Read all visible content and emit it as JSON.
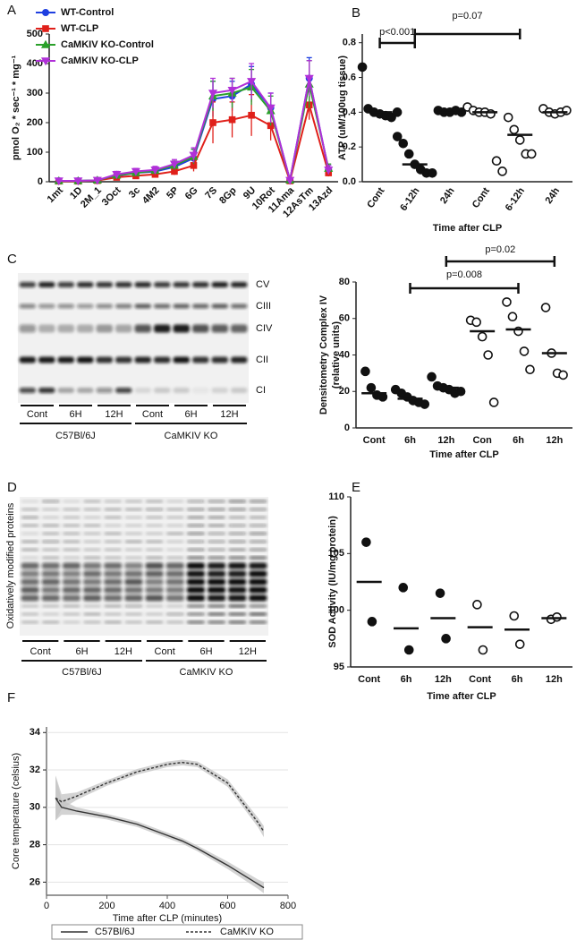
{
  "chart_data": [
    {
      "type": "line",
      "panel": "A",
      "ylabel": "pmol O₂ * sec⁻¹ * mg⁻¹",
      "categories": [
        "1mt",
        "1D",
        "2M_1",
        "3Oct",
        "3c",
        "4M2",
        "5P",
        "6G",
        "7S",
        "8Gp",
        "9U",
        "10Rot",
        "11Ama",
        "12AsTm",
        "13Azd"
      ],
      "ylim": [
        0,
        500
      ],
      "yticks": [
        0,
        100,
        200,
        300,
        400,
        500
      ],
      "legend": "upper left",
      "series": [
        {
          "name": "WT-Control",
          "color": "#1f3fe0",
          "marker": "circle",
          "values": [
            3,
            3,
            5,
            20,
            30,
            35,
            50,
            80,
            280,
            290,
            330,
            250,
            5,
            350,
            40
          ],
          "errors": [
            2,
            2,
            3,
            10,
            10,
            12,
            15,
            30,
            60,
            50,
            60,
            50,
            3,
            70,
            15
          ]
        },
        {
          "name": "WT-CLP",
          "color": "#e0201a",
          "marker": "square",
          "values": [
            2,
            2,
            4,
            15,
            20,
            25,
            35,
            55,
            200,
            210,
            225,
            190,
            3,
            260,
            30
          ],
          "errors": [
            2,
            2,
            3,
            8,
            8,
            10,
            12,
            20,
            70,
            60,
            70,
            50,
            3,
            50,
            12
          ]
        },
        {
          "name": "CaMKIV KO-Control",
          "color": "#2aa02a",
          "marker": "triangle",
          "values": [
            3,
            3,
            5,
            22,
            30,
            38,
            55,
            85,
            290,
            300,
            320,
            240,
            5,
            330,
            45
          ],
          "errors": [
            2,
            2,
            3,
            10,
            10,
            12,
            15,
            25,
            50,
            50,
            60,
            50,
            3,
            80,
            15
          ]
        },
        {
          "name": "CaMKIV KO-CLP",
          "color": "#b030d8",
          "marker": "triangle-down",
          "values": [
            3,
            3,
            5,
            25,
            35,
            40,
            60,
            90,
            300,
            310,
            340,
            250,
            5,
            350,
            40
          ],
          "errors": [
            2,
            2,
            3,
            10,
            10,
            12,
            15,
            25,
            50,
            40,
            60,
            50,
            3,
            60,
            15
          ]
        }
      ]
    },
    {
      "type": "dotplot",
      "panel": "B",
      "ylabel": "ATP (uM/100ug tissue)",
      "xlabel": "Time after CLP",
      "categories": [
        "Cont",
        "6-12h",
        "24h",
        "Cont",
        "6-12h",
        "24h"
      ],
      "ylim": [
        0,
        0.85
      ],
      "yticks": [
        {
          "value": 0,
          "label": "0.0"
        },
        0.2,
        0.4,
        0.6,
        0.8
      ],
      "filled": [
        true,
        true,
        true,
        false,
        false,
        false
      ],
      "points": [
        [
          0.66,
          0.42,
          0.4,
          0.39,
          0.38,
          0.37,
          0.4
        ],
        [
          0.26,
          0.22,
          0.16,
          0.1,
          0.07,
          0.05,
          0.05
        ],
        [
          0.41,
          0.4,
          0.4,
          0.41,
          0.4
        ],
        [
          0.43,
          0.41,
          0.4,
          0.4,
          0.39,
          0.12,
          0.06
        ],
        [
          0.37,
          0.3,
          0.24,
          0.16,
          0.16
        ],
        [
          0.42,
          0.4,
          0.39,
          0.4,
          0.41
        ]
      ],
      "medians": [
        0.4,
        0.1,
        0.4,
        0.4,
        0.27,
        0.4
      ],
      "annotations": [
        "p<0.001",
        "p=0.07"
      ]
    },
    {
      "type": "dotplot",
      "ylabel": [
        "Densitometry Complex IV",
        "(relative units)"
      ],
      "xlabel": "Time after CLP",
      "categories": [
        "Cont",
        "6h",
        "12h",
        "Con",
        "6h",
        "12h"
      ],
      "ylim": [
        0,
        80
      ],
      "yticks": [
        0,
        20,
        40,
        60,
        80
      ],
      "filled": [
        true,
        true,
        true,
        false,
        false,
        false
      ],
      "points": [
        [
          31,
          22,
          18,
          17
        ],
        [
          21,
          19,
          17,
          15,
          14,
          13
        ],
        [
          28,
          23,
          22,
          21,
          19,
          20
        ],
        [
          59,
          58,
          50,
          40,
          14
        ],
        [
          69,
          61,
          53,
          42,
          32
        ],
        [
          66,
          41,
          30,
          29
        ]
      ],
      "medians": [
        19,
        16,
        22,
        53,
        54,
        41
      ],
      "annotations": [
        "p=0.008",
        "p=0.02"
      ]
    },
    {
      "type": "dotplot",
      "panel": "E",
      "ylabel": "SOD Activity (IU/mg protein)",
      "xlabel": "Time after CLP",
      "categories": [
        "Cont",
        "6h",
        "12h",
        "Cont",
        "6h",
        "12h"
      ],
      "ylim": [
        95,
        110
      ],
      "yticks": [
        95,
        100,
        105,
        110
      ],
      "filled": [
        true,
        true,
        true,
        false,
        false,
        false
      ],
      "points": [
        [
          106,
          99
        ],
        [
          102,
          96.5
        ],
        [
          101.5,
          97.5
        ],
        [
          100.5,
          96.5
        ],
        [
          99.5,
          97
        ],
        [
          99.2,
          99.4
        ]
      ],
      "medians": [
        102.5,
        98.4,
        99.3,
        98.5,
        98.3,
        99.3
      ]
    },
    {
      "type": "line-ci",
      "panel": "F",
      "ylabel": "Core temperature (celsius)",
      "xlabel": "Time after CLP (minutes)",
      "x": [
        30,
        50,
        100,
        200,
        300,
        400,
        450,
        500,
        600,
        700,
        720
      ],
      "xlim": [
        0,
        800
      ],
      "xticks": [
        0,
        200,
        400,
        600,
        800
      ],
      "ylim": [
        25.3,
        34.3
      ],
      "yticks": [
        26,
        28,
        30,
        32,
        34
      ],
      "grid": true,
      "legend": "bottom",
      "series": [
        {
          "name": "C57Bl/6J",
          "line_style": "solid",
          "values": [
            30.5,
            30.0,
            29.8,
            29.5,
            29.1,
            28.5,
            28.2,
            27.8,
            26.9,
            25.9,
            25.7
          ],
          "ci": [
            1.2,
            0.4,
            0.2,
            0.15,
            0.15,
            0.15,
            0.15,
            0.15,
            0.2,
            0.25,
            0.3
          ]
        },
        {
          "name": "CaMKIV KO",
          "line_style": "dashed",
          "values": [
            30.5,
            30.3,
            30.6,
            31.3,
            31.9,
            32.3,
            32.4,
            32.3,
            31.3,
            29.2,
            28.7
          ],
          "ci": [
            1.2,
            0.4,
            0.2,
            0.15,
            0.15,
            0.15,
            0.15,
            0.15,
            0.2,
            0.25,
            0.3
          ]
        }
      ]
    }
  ],
  "blots": [
    {
      "panel": "C",
      "band_labels": [
        "CV",
        "CIII",
        "CIV",
        "CII",
        "CI"
      ],
      "lane_labels": [
        "Cont",
        "6H",
        "12H",
        "Cont",
        "6H",
        "12H"
      ],
      "groups": [
        "C57Bl/6J",
        "CaMKIV KO"
      ]
    },
    {
      "panel": "D",
      "ylabel": "Oxidatively modified proteins",
      "lane_labels": [
        "Cont",
        "6H",
        "12H",
        "Cont",
        "6H",
        "12H"
      ],
      "groups": [
        "C57Bl/6J",
        "CaMKIV KO"
      ]
    }
  ]
}
